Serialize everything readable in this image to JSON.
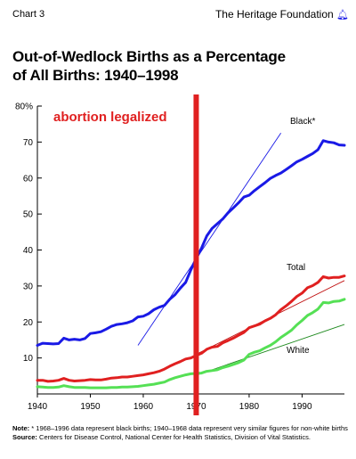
{
  "header": {
    "chart_label": "Chart 3",
    "publisher": "The Heritage Foundation"
  },
  "title_line1": "Out-of-Wedlock Births as a Percentage",
  "title_line2": "of All Births: 1940–1998",
  "notes": {
    "note_label": "Note:",
    "note_text": "* 1968–1996 data represent black births; 1940–1968 data represent very similar figures for non-white births",
    "source_label": "Source:",
    "source_text": "Centers for Disease Control, National Center for Health Statistics, Division of Vital Statistics."
  },
  "colors": {
    "black_series": "#1a1ae6",
    "total_series": "#e02020",
    "white_series": "#55e055",
    "marker": "#e02020",
    "annotation": "#e02020"
  },
  "chart_data": {
    "type": "line",
    "xlim": [
      1940,
      1998
    ],
    "ylim": [
      0,
      80
    ],
    "y_ticks": [
      10,
      20,
      30,
      40,
      50,
      60,
      70,
      80
    ],
    "y_tick_labels": [
      "10",
      "20",
      "30",
      "40",
      "50",
      "60",
      "70",
      "80%"
    ],
    "x_ticks": [
      1940,
      1950,
      1960,
      1970,
      1980,
      1990
    ],
    "x_tick_labels": [
      "1940",
      "1950",
      "1960",
      "1970",
      "1980",
      "1990"
    ],
    "grid": false,
    "series": [
      {
        "name": "Black*",
        "x": [
          1940,
          1941,
          1942,
          1943,
          1944,
          1945,
          1946,
          1947,
          1948,
          1949,
          1950,
          1951,
          1952,
          1953,
          1954,
          1955,
          1956,
          1957,
          1958,
          1959,
          1960,
          1961,
          1962,
          1963,
          1964,
          1965,
          1966,
          1967,
          1968,
          1969,
          1970,
          1971,
          1972,
          1973,
          1974,
          1975,
          1976,
          1977,
          1978,
          1979,
          1980,
          1981,
          1982,
          1983,
          1984,
          1985,
          1986,
          1987,
          1988,
          1989,
          1990,
          1991,
          1992,
          1993,
          1994,
          1995,
          1996,
          1997,
          1998
        ],
        "values": [
          13.5,
          14.1,
          14.0,
          13.9,
          14.0,
          15.5,
          15.0,
          15.2,
          15.0,
          15.4,
          16.8,
          17.0,
          17.3,
          18.0,
          18.8,
          19.3,
          19.5,
          19.8,
          20.3,
          21.4,
          21.6,
          22.3,
          23.4,
          24.1,
          24.6,
          26.3,
          27.6,
          29.4,
          31.0,
          34.5,
          37.6,
          40.5,
          43.9,
          46.0,
          47.3,
          48.6,
          50.3,
          51.7,
          53.1,
          54.7,
          55.2,
          56.5,
          57.6,
          58.7,
          59.9,
          60.7,
          61.4,
          62.4,
          63.4,
          64.5,
          65.2,
          66.0,
          66.8,
          67.9,
          70.4,
          70.0,
          69.8,
          69.2,
          69.1
        ]
      },
      {
        "name": "Total",
        "x": [
          1940,
          1941,
          1942,
          1943,
          1944,
          1945,
          1946,
          1947,
          1948,
          1949,
          1950,
          1951,
          1952,
          1953,
          1954,
          1955,
          1956,
          1957,
          1958,
          1959,
          1960,
          1961,
          1962,
          1963,
          1964,
          1965,
          1966,
          1967,
          1968,
          1969,
          1970,
          1971,
          1972,
          1973,
          1974,
          1975,
          1976,
          1977,
          1978,
          1979,
          1980,
          1981,
          1982,
          1983,
          1984,
          1985,
          1986,
          1987,
          1988,
          1989,
          1990,
          1991,
          1992,
          1993,
          1994,
          1995,
          1996,
          1997,
          1998
        ],
        "values": [
          3.8,
          3.8,
          3.5,
          3.6,
          3.8,
          4.3,
          3.8,
          3.6,
          3.7,
          3.8,
          4.0,
          3.9,
          3.9,
          4.1,
          4.4,
          4.5,
          4.7,
          4.7,
          4.9,
          5.1,
          5.3,
          5.6,
          5.9,
          6.3,
          6.9,
          7.7,
          8.4,
          9.0,
          9.7,
          10.0,
          10.7,
          11.3,
          12.4,
          13.0,
          13.2,
          14.2,
          14.8,
          15.5,
          16.3,
          17.1,
          18.4,
          18.9,
          19.4,
          20.3,
          21.0,
          22.0,
          23.4,
          24.5,
          25.7,
          27.1,
          28.0,
          29.5,
          30.1,
          31.0,
          32.6,
          32.2,
          32.4,
          32.4,
          32.8
        ]
      },
      {
        "name": "White",
        "x": [
          1940,
          1941,
          1942,
          1943,
          1944,
          1945,
          1946,
          1947,
          1948,
          1949,
          1950,
          1951,
          1952,
          1953,
          1954,
          1955,
          1956,
          1957,
          1958,
          1959,
          1960,
          1961,
          1962,
          1963,
          1964,
          1965,
          1966,
          1967,
          1968,
          1969,
          1970,
          1971,
          1972,
          1973,
          1974,
          1975,
          1976,
          1977,
          1978,
          1979,
          1980,
          1981,
          1982,
          1983,
          1984,
          1985,
          1986,
          1987,
          1988,
          1989,
          1990,
          1991,
          1992,
          1993,
          1994,
          1995,
          1996,
          1997,
          1998
        ],
        "values": [
          2.0,
          1.9,
          1.8,
          1.8,
          1.9,
          2.3,
          2.0,
          1.8,
          1.8,
          1.8,
          1.7,
          1.7,
          1.7,
          1.7,
          1.8,
          1.8,
          1.9,
          1.9,
          2.0,
          2.1,
          2.3,
          2.5,
          2.7,
          3.0,
          3.3,
          4.0,
          4.5,
          4.9,
          5.3,
          5.6,
          5.7,
          5.8,
          6.3,
          6.5,
          6.7,
          7.3,
          7.7,
          8.2,
          8.7,
          9.4,
          11.0,
          11.6,
          12.0,
          12.8,
          13.5,
          14.5,
          15.7,
          16.7,
          17.7,
          19.2,
          20.4,
          21.8,
          22.6,
          23.6,
          25.4,
          25.3,
          25.7,
          25.8,
          26.3
        ]
      }
    ],
    "annotations": [
      {
        "text": "abortion legalized",
        "x": 1960,
        "y": 75
      },
      {
        "type": "vline",
        "x": 1970
      }
    ],
    "trend_lines": [
      {
        "series": "Black*",
        "x": [
          1959,
          1986
        ],
        "values": [
          13.5,
          72.5
        ]
      },
      {
        "series": "Total",
        "x": [
          1970,
          1998
        ],
        "values": [
          11.0,
          31.5
        ]
      },
      {
        "series": "White",
        "x": [
          1970,
          1998
        ],
        "values": [
          5.2,
          19.3
        ]
      }
    ]
  }
}
